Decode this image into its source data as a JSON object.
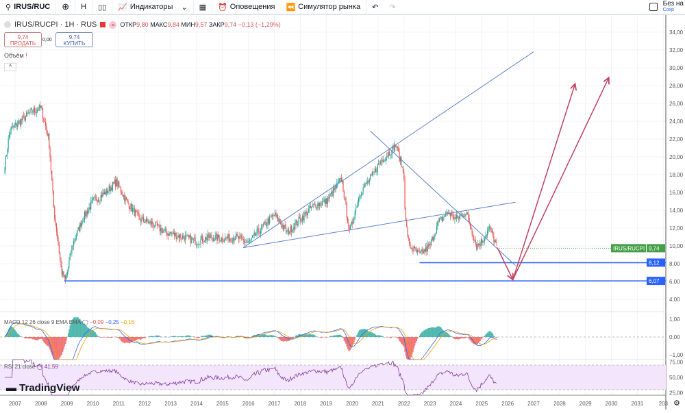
{
  "toolbar": {
    "symbol": "IRUS/RUC",
    "interval": "H",
    "indicators": "Индикаторы",
    "alerts": "Оповещения",
    "replay": "Симулятор рынка",
    "layout_name": "Без на",
    "save": "Сохр"
  },
  "legend": {
    "title": "IRUS/RUCPI · 1H · RUS",
    "open_label": "ОТКР",
    "open": "9,80",
    "high_label": "МАКС",
    "high": "9,84",
    "low_label": "МИН",
    "low": "9,57",
    "close_label": "ЗАКР",
    "close": "9,74",
    "change": "−0,13 (−1,29%)"
  },
  "trade": {
    "sell_price": "9,74",
    "sell_label": "ПРОДАТЬ",
    "spread": "0,00",
    "buy_price": "9,74",
    "buy_label": "КУПИТЬ"
  },
  "volume_label": "Объём",
  "macd": {
    "label": "MACD 12 26 close 9 EMA EMA",
    "v1": "−0,09",
    "v2": "−0,25",
    "v3": "−0,16"
  },
  "rsi": {
    "label": "RSI 21 close",
    "value": "41,59"
  },
  "logo": "TradingView",
  "colors": {
    "up": "#26a69a",
    "down": "#ef5350",
    "trend": "#5b7fc7",
    "arrow": "#c2405e",
    "hline": "#2962ff",
    "rsi": "#7e3a9e",
    "last": "#43a047"
  },
  "chart_data": {
    "type": "candlestick",
    "symbol": "IRUS/RUCPI",
    "x_ticks": [
      "2007",
      "2008",
      "2009",
      "2010",
      "2011",
      "2012",
      "2013",
      "2014",
      "2015",
      "2016",
      "2017",
      "2018",
      "2019",
      "2020",
      "2021",
      "2022",
      "2023",
      "2024",
      "2025",
      "2026",
      "2027",
      "2028",
      "2029",
      "2030",
      "2031",
      "203"
    ],
    "y_ticks": [
      "34,00",
      "32,00",
      "30,00",
      "28,00",
      "26,00",
      "24,00",
      "22,00",
      "20,00",
      "18,00",
      "16,00",
      "14,00",
      "12,00",
      "10,00",
      "8,00",
      "6,00",
      "4,00"
    ],
    "ylim": [
      3,
      35
    ],
    "price_path": [
      [
        2006.6,
        19
      ],
      [
        2006.8,
        23
      ],
      [
        2007.2,
        24
      ],
      [
        2007.6,
        25
      ],
      [
        2008.0,
        25.5
      ],
      [
        2008.3,
        22
      ],
      [
        2008.5,
        14
      ],
      [
        2008.8,
        7
      ],
      [
        2008.95,
        6.1
      ],
      [
        2009.2,
        10
      ],
      [
        2009.6,
        13
      ],
      [
        2010.0,
        15
      ],
      [
        2010.5,
        16
      ],
      [
        2010.9,
        17.2
      ],
      [
        2011.3,
        15
      ],
      [
        2011.8,
        13
      ],
      [
        2012.3,
        12.5
      ],
      [
        2012.8,
        11.5
      ],
      [
        2013.5,
        11
      ],
      [
        2014.0,
        10.5
      ],
      [
        2014.5,
        11
      ],
      [
        2015.0,
        10.8
      ],
      [
        2015.5,
        11
      ],
      [
        2016.0,
        10.3
      ],
      [
        2016.5,
        12
      ],
      [
        2017.0,
        13.5
      ],
      [
        2017.5,
        11.5
      ],
      [
        2018.0,
        13
      ],
      [
        2018.5,
        14.5
      ],
      [
        2019.0,
        15
      ],
      [
        2019.6,
        17.5
      ],
      [
        2019.9,
        11.5
      ],
      [
        2020.3,
        16
      ],
      [
        2020.7,
        17.5
      ],
      [
        2021.1,
        19.5
      ],
      [
        2021.7,
        21.3
      ],
      [
        2022.0,
        18
      ],
      [
        2022.05,
        13
      ],
      [
        2022.2,
        10
      ],
      [
        2022.6,
        9
      ],
      [
        2023.0,
        10
      ],
      [
        2023.3,
        12.5
      ],
      [
        2023.7,
        13.8
      ],
      [
        2024.0,
        13
      ],
      [
        2024.4,
        13.8
      ],
      [
        2024.8,
        10
      ],
      [
        2025.0,
        10.5
      ],
      [
        2025.3,
        12
      ],
      [
        2025.6,
        9.74
      ]
    ],
    "last_price": {
      "label": "IRUS/RUCPI",
      "value": "9,74",
      "y": 9.74
    },
    "horizontal_lines": [
      {
        "value": "8,12",
        "y": 8.12,
        "from": 2022.6
      },
      {
        "value": "6,07",
        "y": 6.07,
        "from": 2008.9
      }
    ],
    "trend_lines": [
      [
        [
          2015.8,
          9.8
        ],
        [
          2027.0,
          31.8
        ]
      ],
      [
        [
          2015.8,
          9.8
        ],
        [
          2026.3,
          14.9
        ]
      ],
      [
        [
          2020.7,
          22.9
        ],
        [
          2026.3,
          7.8
        ]
      ]
    ],
    "arrows": [
      [
        [
          2025.6,
          9.8
        ],
        [
          2026.2,
          6.2
        ]
      ],
      [
        [
          2026.2,
          6.2
        ],
        [
          2028.6,
          28.2
        ]
      ],
      [
        [
          2026.2,
          6.2
        ],
        [
          2029.9,
          28.9
        ]
      ]
    ],
    "macd_ticks": [
      "1,00",
      "0,00",
      "−1,00"
    ],
    "rsi_ticks": [
      "75,00",
      "50,00",
      "25,00"
    ]
  }
}
